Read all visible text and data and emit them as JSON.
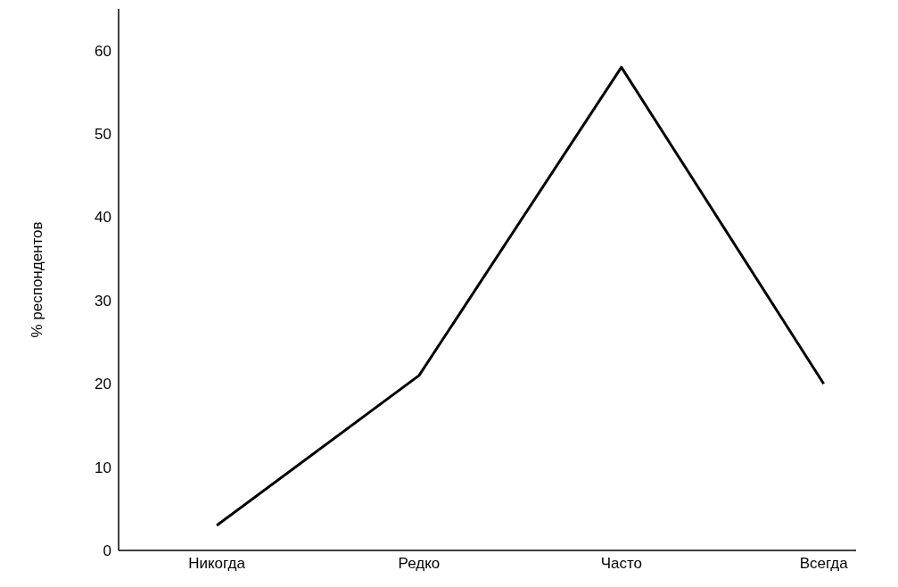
{
  "chart_data": {
    "type": "line",
    "ylabel": "% респондентов",
    "categories": [
      "Никогда",
      "Редко",
      "Часто",
      "Всегда"
    ],
    "series": [
      {
        "color": "#000000",
        "values": [
          3,
          21,
          58,
          20
        ]
      }
    ],
    "ylim": [
      0,
      65
    ],
    "yticks": [
      0,
      10,
      20,
      30,
      40,
      50,
      60
    ],
    "marker": "none",
    "line_style": "solid"
  }
}
